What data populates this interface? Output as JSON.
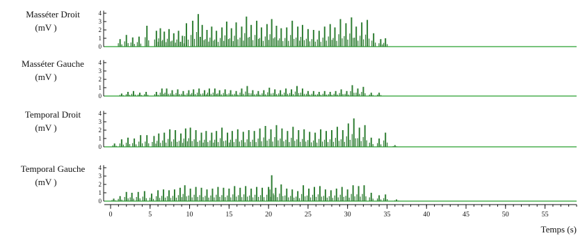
{
  "chart_data": {
    "type": "bar",
    "xlabel": "Temps (s)",
    "xlim": [
      0,
      59
    ],
    "x_ticks": [
      "0",
      "5",
      "10",
      "15",
      "20",
      "25",
      "30",
      "35",
      "40",
      "45",
      "50",
      "55"
    ],
    "y_ticks": [
      "0",
      "1",
      "2",
      "3",
      "4"
    ],
    "ylim": [
      0,
      4.5
    ],
    "bar_color": "#2e7d32",
    "baseline_color": "#4caf50",
    "series": [
      {
        "label_line1": "Masséter Droit",
        "label_line2": "(mV )",
        "peaks": [
          [
            1.2,
            0.9
          ],
          [
            2.0,
            1.4
          ],
          [
            2.8,
            1.1
          ],
          [
            3.6,
            1.2
          ],
          [
            4.6,
            2.5
          ],
          [
            5.8,
            1.9
          ],
          [
            6.3,
            2.2
          ],
          [
            6.8,
            1.8
          ],
          [
            7.4,
            2.1
          ],
          [
            8.0,
            1.6
          ],
          [
            8.6,
            1.9
          ],
          [
            9.1,
            1.3
          ],
          [
            9.6,
            2.8
          ],
          [
            10.4,
            3.1
          ],
          [
            11.1,
            3.9
          ],
          [
            11.6,
            2.6
          ],
          [
            12.2,
            2.0
          ],
          [
            12.8,
            2.4
          ],
          [
            13.4,
            1.9
          ],
          [
            14.1,
            2.3
          ],
          [
            14.7,
            3.0
          ],
          [
            15.3,
            2.2
          ],
          [
            15.9,
            2.9
          ],
          [
            16.6,
            2.4
          ],
          [
            17.2,
            3.6
          ],
          [
            17.8,
            2.6
          ],
          [
            18.5,
            3.1
          ],
          [
            19.1,
            2.3
          ],
          [
            19.8,
            2.7
          ],
          [
            20.4,
            3.3
          ],
          [
            21.0,
            2.5
          ],
          [
            21.6,
            2.2
          ],
          [
            22.3,
            2.3
          ],
          [
            23.0,
            3.1
          ],
          [
            23.7,
            2.4
          ],
          [
            24.3,
            2.6
          ],
          [
            25.0,
            2.1
          ],
          [
            25.7,
            2.0
          ],
          [
            26.4,
            1.9
          ],
          [
            27.1,
            2.4
          ],
          [
            27.8,
            2.7
          ],
          [
            28.4,
            2.3
          ],
          [
            29.1,
            3.3
          ],
          [
            29.8,
            2.8
          ],
          [
            30.5,
            3.5
          ],
          [
            31.1,
            2.4
          ],
          [
            31.8,
            2.9
          ],
          [
            32.5,
            3.2
          ],
          [
            33.3,
            1.6
          ],
          [
            34.2,
            0.9
          ],
          [
            34.8,
            1.0
          ]
        ]
      },
      {
        "label_line1": "Masséter Gauche",
        "label_line2": "(mV )",
        "peaks": [
          [
            1.4,
            0.3
          ],
          [
            2.2,
            0.5
          ],
          [
            2.9,
            0.6
          ],
          [
            3.7,
            0.4
          ],
          [
            4.5,
            0.5
          ],
          [
            5.8,
            0.5
          ],
          [
            6.5,
            0.9
          ],
          [
            7.1,
            0.9
          ],
          [
            7.8,
            0.7
          ],
          [
            8.5,
            0.8
          ],
          [
            9.2,
            0.6
          ],
          [
            9.9,
            0.7
          ],
          [
            10.5,
            0.8
          ],
          [
            11.2,
            0.9
          ],
          [
            11.9,
            0.7
          ],
          [
            12.5,
            0.9
          ],
          [
            13.2,
            0.9
          ],
          [
            13.8,
            0.7
          ],
          [
            14.5,
            0.8
          ],
          [
            15.2,
            0.7
          ],
          [
            15.9,
            0.6
          ],
          [
            16.6,
            0.9
          ],
          [
            17.3,
            1.2
          ],
          [
            18.0,
            0.7
          ],
          [
            18.7,
            0.6
          ],
          [
            19.4,
            0.7
          ],
          [
            20.1,
            1.0
          ],
          [
            20.8,
            0.8
          ],
          [
            21.5,
            0.7
          ],
          [
            22.2,
            0.9
          ],
          [
            22.9,
            0.8
          ],
          [
            23.6,
            1.2
          ],
          [
            24.3,
            0.9
          ],
          [
            25.0,
            0.6
          ],
          [
            25.7,
            0.6
          ],
          [
            26.4,
            0.5
          ],
          [
            27.1,
            0.6
          ],
          [
            27.8,
            0.5
          ],
          [
            28.5,
            0.6
          ],
          [
            29.2,
            0.8
          ],
          [
            29.9,
            0.6
          ],
          [
            30.6,
            1.3
          ],
          [
            31.3,
            0.9
          ],
          [
            32.0,
            1.1
          ],
          [
            33.0,
            0.4
          ],
          [
            34.0,
            0.4
          ]
        ]
      },
      {
        "label_line1": "Temporal Droit",
        "label_line2": "(mV )",
        "peaks": [
          [
            0.5,
            0.4
          ],
          [
            1.4,
            0.9
          ],
          [
            2.2,
            1.1
          ],
          [
            3.0,
            1.0
          ],
          [
            3.8,
            1.4
          ],
          [
            4.6,
            1.4
          ],
          [
            5.5,
            1.3
          ],
          [
            6.1,
            1.6
          ],
          [
            6.8,
            1.7
          ],
          [
            7.5,
            2.1
          ],
          [
            8.2,
            2.0
          ],
          [
            8.9,
            1.6
          ],
          [
            9.5,
            2.2
          ],
          [
            10.1,
            2.3
          ],
          [
            10.8,
            2.0
          ],
          [
            11.5,
            1.7
          ],
          [
            12.1,
            1.9
          ],
          [
            12.8,
            1.7
          ],
          [
            13.4,
            1.9
          ],
          [
            14.1,
            2.3
          ],
          [
            14.8,
            1.7
          ],
          [
            15.4,
            1.9
          ],
          [
            16.1,
            2.1
          ],
          [
            16.8,
            1.8
          ],
          [
            17.5,
            2.0
          ],
          [
            18.2,
            1.9
          ],
          [
            18.9,
            2.2
          ],
          [
            19.6,
            2.5
          ],
          [
            20.3,
            2.1
          ],
          [
            21.0,
            2.6
          ],
          [
            21.7,
            2.2
          ],
          [
            22.4,
            1.9
          ],
          [
            23.1,
            2.4
          ],
          [
            23.8,
            2.0
          ],
          [
            24.5,
            2.1
          ],
          [
            25.2,
            1.8
          ],
          [
            25.9,
            1.7
          ],
          [
            26.6,
            2.1
          ],
          [
            27.3,
            1.9
          ],
          [
            28.0,
            2.0
          ],
          [
            28.7,
            2.4
          ],
          [
            29.4,
            2.0
          ],
          [
            30.1,
            2.8
          ],
          [
            30.8,
            3.4
          ],
          [
            31.5,
            2.3
          ],
          [
            32.2,
            2.6
          ],
          [
            33.0,
            1.1
          ],
          [
            34.0,
            1.0
          ],
          [
            34.8,
            1.7
          ],
          [
            36.0,
            0.2
          ]
        ]
      },
      {
        "label_line1": "Temporal Gauche",
        "label_line2": "(mV )",
        "peaks": [
          [
            0.4,
            0.3
          ],
          [
            1.2,
            0.6
          ],
          [
            2.0,
            1.1
          ],
          [
            2.7,
            1.0
          ],
          [
            3.5,
            1.1
          ],
          [
            4.3,
            1.2
          ],
          [
            5.2,
            0.9
          ],
          [
            6.0,
            1.3
          ],
          [
            6.7,
            1.4
          ],
          [
            7.4,
            1.3
          ],
          [
            8.1,
            1.4
          ],
          [
            8.8,
            1.6
          ],
          [
            9.4,
            1.9
          ],
          [
            10.1,
            1.5
          ],
          [
            10.8,
            1.7
          ],
          [
            11.5,
            1.6
          ],
          [
            12.2,
            1.4
          ],
          [
            12.9,
            1.5
          ],
          [
            13.6,
            1.7
          ],
          [
            14.3,
            1.6
          ],
          [
            15.0,
            1.5
          ],
          [
            15.7,
            1.8
          ],
          [
            16.4,
            1.6
          ],
          [
            17.1,
            1.8
          ],
          [
            17.8,
            1.5
          ],
          [
            18.5,
            1.7
          ],
          [
            19.2,
            1.6
          ],
          [
            20.0,
            1.7
          ],
          [
            20.4,
            3.1
          ],
          [
            20.9,
            1.6
          ],
          [
            21.6,
            2.0
          ],
          [
            22.3,
            1.5
          ],
          [
            23.0,
            1.4
          ],
          [
            23.7,
            1.2
          ],
          [
            24.4,
            1.9
          ],
          [
            25.1,
            1.5
          ],
          [
            25.8,
            1.7
          ],
          [
            26.5,
            1.8
          ],
          [
            27.2,
            1.4
          ],
          [
            27.9,
            1.3
          ],
          [
            28.6,
            1.5
          ],
          [
            29.3,
            1.7
          ],
          [
            30.0,
            1.4
          ],
          [
            30.7,
            1.9
          ],
          [
            31.4,
            1.8
          ],
          [
            32.1,
            1.9
          ],
          [
            33.0,
            1.0
          ],
          [
            34.0,
            0.7
          ],
          [
            34.8,
            0.8
          ],
          [
            36.2,
            0.2
          ]
        ]
      }
    ]
  }
}
